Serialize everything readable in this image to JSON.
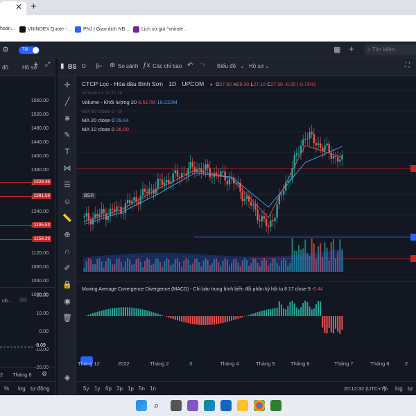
{
  "browser": {
    "tab_close": "✕",
    "new_tab": "+",
    "bookmarks": [
      {
        "label": "hoản...",
        "color": "#3c6e9e"
      },
      {
        "label": "VNINDEX Quote -...",
        "color": "#111111"
      },
      {
        "label": "PNJ | Giao dịch NĐ...",
        "color": "#2962ff"
      },
      {
        "label": "Lịch sử giá ^vninde...",
        "color": "#7b1fa2"
      }
    ]
  },
  "app": {
    "toggle_label": "Tối",
    "search_placeholder": "Tìm kiếm..."
  },
  "left_panel": {
    "menu1": "đồ",
    "menu2": "Hồ sơ",
    "y_labels": [
      "1560.00",
      "1520.00",
      "1480.00",
      "1440.00",
      "1400.00",
      "1360.00",
      "1320.00",
      "1280.00",
      "1240.00",
      "1200.00",
      "1160.00",
      "1120.00",
      "1080.00",
      "1040.00",
      "1000.00"
    ],
    "price_tags": [
      "1328.46",
      "1281.59",
      "1195.53",
      "1156.29"
    ],
    "macd_y": [
      "20.00",
      "10.00",
      "0.00",
      "-10.00",
      "-20.00"
    ],
    "macd_tag": "-8.09",
    "indicator_label": "clo...",
    "time_left": [
      "2",
      "Tháng 8"
    ],
    "bottom": [
      "%",
      "log",
      "tự động"
    ]
  },
  "chart": {
    "tab_title": "BSR (1D)",
    "toolbar": {
      "interval": "D",
      "compare": "So sánh",
      "indicators": "Các chỉ báo",
      "chart_type": "Biểu đồ",
      "profile": "Hồ sơ"
    },
    "symbol": {
      "name": "CTCP Lọc - Hóa dầu Bình Sơn",
      "interval": "1D",
      "exchange": "UPCOM",
      "o_label": "O",
      "o": "27.50",
      "h_label": "H",
      "h": "28.30",
      "l_label": "L",
      "l": "27.10",
      "c_label": "C",
      "c": "27.30",
      "change": "-0.20 (-0.73%)"
    },
    "legends": {
      "ichimoku": "Ichimoku 9 26 52 26",
      "volume_label": "Volume - Khối lượng 20",
      "volume_value": "6.517M",
      "volume_ma": "19.222M",
      "ma50": "MA 50 close 0",
      "ma20_label": "MA 20 close 0",
      "ma20_value": "29.64",
      "ma10_label": "MA 10 close 0",
      "ma10_value": "28.00",
      "macd_label": "Moving Average Covergence Divergence (MACD) - Chỉ báo trung bình biến đổi phân kỳ hội tụ 8 17 close 9",
      "macd_value": "-0.44",
      "symbol_badge": "BSR"
    },
    "time_axis": [
      "Tháng 12",
      "2022",
      "Tháng 2",
      "3",
      "Tháng 4",
      "Tháng 5",
      "Tháng 6",
      "Tháng 7",
      "Tháng 8",
      "2"
    ],
    "timeframes": [
      "5y",
      "1y",
      "6p",
      "3p",
      "1p",
      "5n",
      "1n"
    ],
    "clock": "20:12:32 (UTC+7)",
    "bottom_options": [
      "%",
      "log",
      "tự"
    ],
    "colors": {
      "up": "#26a69a",
      "down": "#ef5350",
      "ma20": "#42a5f5",
      "ma10": "#ef5350",
      "bg": "#131722"
    }
  },
  "chart_data": {
    "type": "line",
    "title": "CTCP Lọc - Hóa dầu Bình Sơn 1D UPCOM",
    "x": [
      "Tháng 12",
      "2022",
      "Tháng 2",
      "3",
      "Tháng 4",
      "Tháng 5",
      "Tháng 6",
      "Tháng 7"
    ],
    "series": [
      {
        "name": "BSR",
        "values": [
          18.5,
          20.2,
          23.8,
          26.5,
          24.6,
          17.2,
          31.5,
          27.3
        ]
      },
      {
        "name": "MA 20 close 0",
        "values": [
          17.8,
          19.6,
          22.4,
          25.6,
          25.0,
          20.4,
          27.2,
          29.64
        ]
      },
      {
        "name": "MA 10 close 0",
        "values": [
          18.2,
          20.0,
          23.2,
          26.0,
          24.8,
          18.8,
          29.8,
          28.0
        ]
      }
    ]
  }
}
